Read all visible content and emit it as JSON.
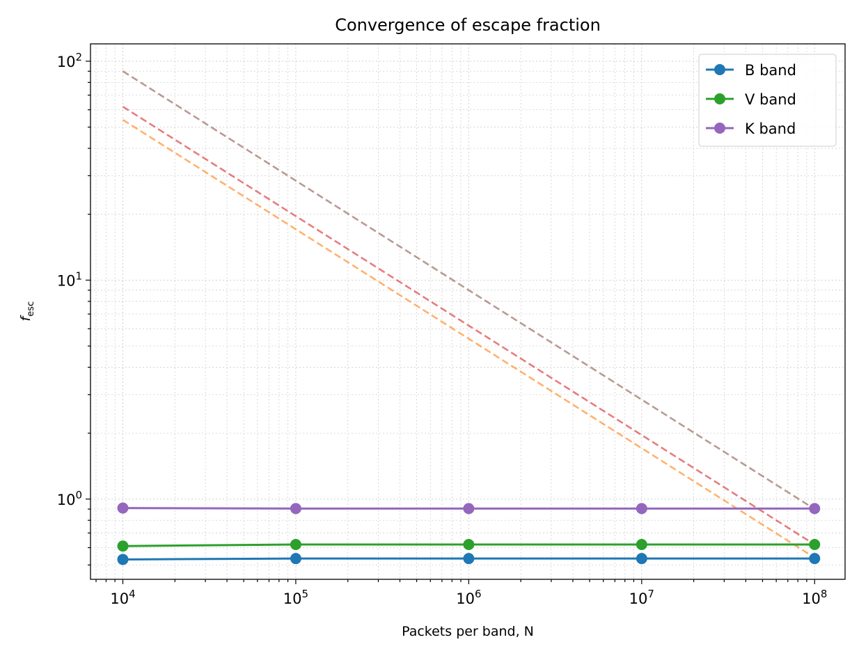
{
  "chart_data": {
    "type": "line",
    "title": "Convergence of escape fraction",
    "xlabel": "Packets per band, N",
    "ylabel": "f",
    "ylabel_subscript": "esc",
    "xscale": "log",
    "yscale": "log",
    "xlim": [
      6500,
      150000000
    ],
    "ylim": [
      0.43,
      120
    ],
    "grid": true,
    "legend_position": "top-right",
    "x_ticks": [
      {
        "value": 10000,
        "base": "10",
        "exp": "4"
      },
      {
        "value": 100000,
        "base": "10",
        "exp": "5"
      },
      {
        "value": 1000000,
        "base": "10",
        "exp": "6"
      },
      {
        "value": 10000000,
        "base": "10",
        "exp": "7"
      },
      {
        "value": 100000000,
        "base": "10",
        "exp": "8"
      }
    ],
    "y_ticks": [
      {
        "value": 1,
        "base": "10",
        "exp": "0"
      },
      {
        "value": 10,
        "base": "10",
        "exp": "1"
      },
      {
        "value": 100,
        "base": "10",
        "exp": "2"
      }
    ],
    "x": [
      10000,
      100000,
      1000000,
      10000000,
      100000000
    ],
    "series": [
      {
        "name": "B band",
        "color": "#1f77b4",
        "values": [
          0.53,
          0.535,
          0.535,
          0.535,
          0.535
        ]
      },
      {
        "name": "V band",
        "color": "#2ca02c",
        "values": [
          0.61,
          0.62,
          0.62,
          0.62,
          0.62
        ]
      },
      {
        "name": "K band",
        "color": "#9467bd",
        "values": [
          0.91,
          0.905,
          0.905,
          0.905,
          0.905
        ]
      }
    ],
    "reference_lines": [
      {
        "color": "#ff7f0e",
        "x": [
          10000,
          100000000
        ],
        "values": [
          54,
          0.54
        ]
      },
      {
        "color": "#d62728",
        "x": [
          10000,
          100000000
        ],
        "values": [
          62,
          0.62
        ]
      },
      {
        "color": "#8c564b",
        "x": [
          10000,
          100000000
        ],
        "values": [
          90,
          0.9
        ]
      }
    ]
  }
}
